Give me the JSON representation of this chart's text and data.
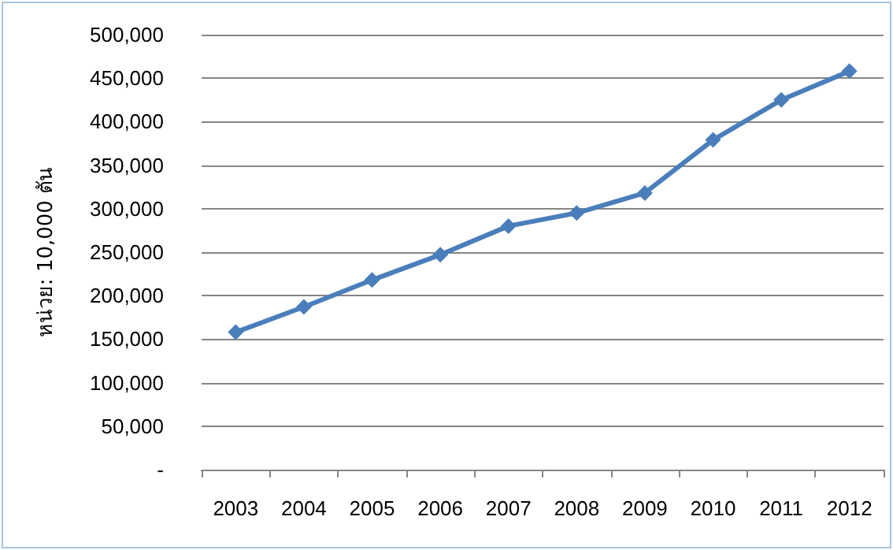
{
  "chart_data": {
    "type": "line",
    "ylabel": "หน่วย: 10,000 ตัน",
    "categories": [
      "2003",
      "2004",
      "2005",
      "2006",
      "2007",
      "2008",
      "2009",
      "2010",
      "2011",
      "2012"
    ],
    "series": [
      {
        "color": "#4a7ebb",
        "values": [
          158000,
          187000,
          218000,
          247000,
          280000,
          295000,
          318000,
          379000,
          425000,
          458000
        ]
      }
    ],
    "ylim": [
      0,
      500000
    ],
    "yticks": [
      {
        "value": 0,
        "label": "-"
      },
      {
        "value": 50000,
        "label": "50,000"
      },
      {
        "value": 100000,
        "label": "100,000"
      },
      {
        "value": 150000,
        "label": "150,000"
      },
      {
        "value": 200000,
        "label": "200,000"
      },
      {
        "value": 250000,
        "label": "250,000"
      },
      {
        "value": 300000,
        "label": "300,000"
      },
      {
        "value": 350000,
        "label": "350,000"
      },
      {
        "value": 400000,
        "label": "400,000"
      },
      {
        "value": 450000,
        "label": "450,000"
      },
      {
        "value": 500000,
        "label": "500,000"
      }
    ],
    "grid": "y",
    "marker": "diamond",
    "line_style": "solid"
  }
}
